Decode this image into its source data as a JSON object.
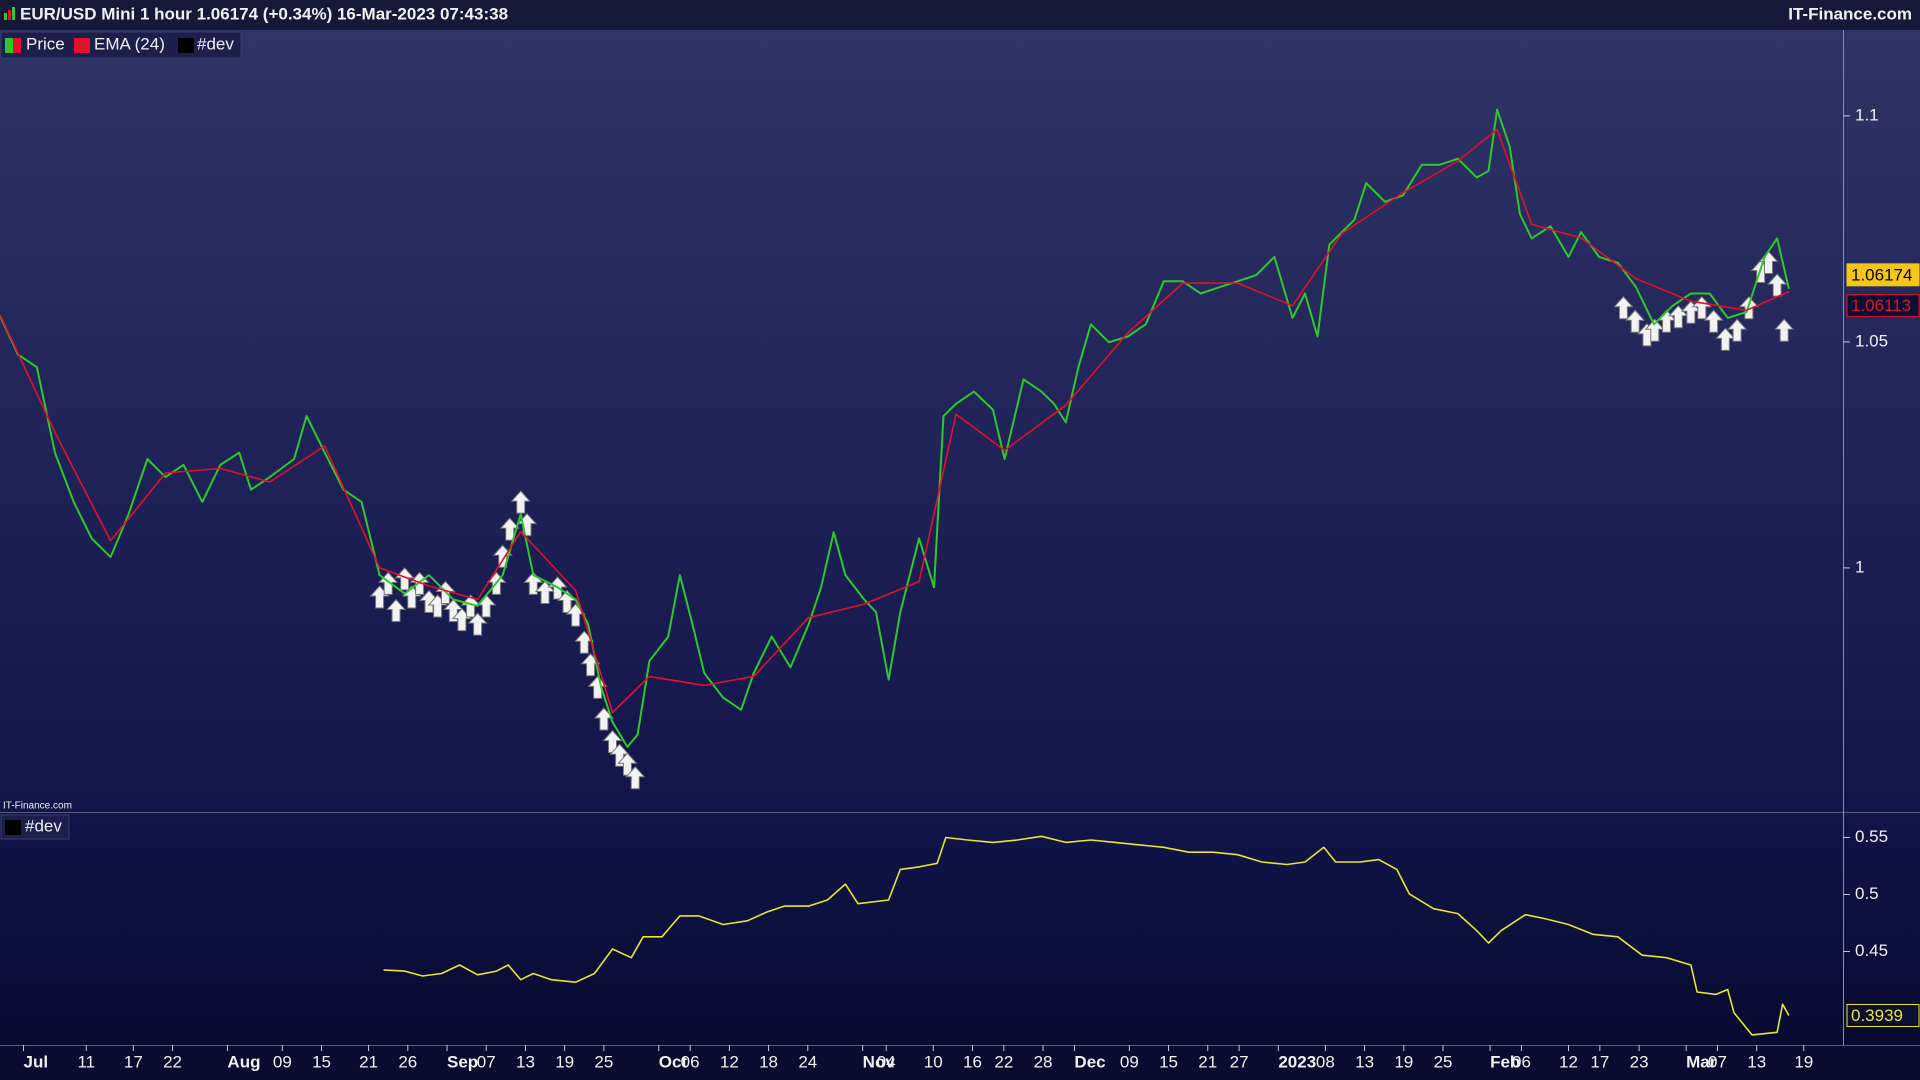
{
  "title": "EUR/USD Mini 1 hour 1.06174 (+0.34%) 16-Mar-2023 07:43:38",
  "brand": "IT-Finance.com",
  "chart_data": [
    {
      "type": "line",
      "xlim": [
        0,
        235
      ],
      "ylim": [
        0.946,
        1.119
      ],
      "yticks": [
        1,
        1.05,
        1.1
      ],
      "x": [
        0,
        2.3,
        4.7,
        7,
        9.4,
        11.7,
        14.1,
        16.4,
        18.8,
        21.1,
        23.4,
        25.8,
        28.1,
        30.5,
        32,
        34.4,
        37.5,
        39.1,
        41.4,
        43.8,
        46.1,
        48.4,
        51.6,
        54.7,
        57.8,
        60.9,
        64.1,
        66.4,
        68,
        71.1,
        73.4,
        75,
        76.6,
        78.1,
        80,
        81.3,
        82.8,
        85.2,
        86.7,
        88.3,
        89.8,
        92.2,
        94.5,
        96.1,
        98.4,
        100.8,
        103.1,
        104.7,
        106.3,
        107.8,
        110.2,
        111.7,
        113.3,
        114.8,
        117.2,
        119.1,
        120.3,
        121.9,
        124.2,
        126.6,
        128.1,
        130.5,
        132.8,
        134.4,
        135.9,
        137.5,
        139.1,
        141.4,
        143.8,
        146.1,
        148.4,
        150.8,
        153.1,
        155.5,
        157.8,
        160.2,
        162.5,
        164.8,
        166.4,
        168,
        169.5,
        171.1,
        172.7,
        174.2,
        176.6,
        178.9,
        181.3,
        183.6,
        185.9,
        188.3,
        189.8,
        190.9,
        192.5,
        193.8,
        195.3,
        197.7,
        200,
        201.6,
        203.9,
        206.3,
        208.6,
        210.9,
        213.3,
        215.6,
        218,
        220.3,
        222.7,
        225,
        226.6,
        228.1
      ],
      "series": [
        {
          "name": "Price",
          "color": "#2ec82e",
          "color2": "#e3102c",
          "values": [
            1.0558,
            1.0472,
            1.0444,
            1.0255,
            1.0146,
            1.0065,
            1.0024,
            1.0119,
            1.0241,
            1.0201,
            1.0228,
            1.0146,
            1.0228,
            1.0255,
            1.0173,
            1.0201,
            1.0241,
            1.0336,
            1.0255,
            1.0173,
            1.0146,
            0.9984,
            0.9943,
            0.9984,
            0.993,
            0.9916,
            0.9984,
            1.0119,
            0.9984,
            0.9957,
            0.993,
            0.9875,
            0.974,
            0.9659,
            0.9604,
            0.9631,
            0.9794,
            0.9848,
            0.9984,
            0.9875,
            0.9767,
            0.9713,
            0.9686,
            0.9767,
            0.9848,
            0.978,
            0.9875,
            0.9957,
            1.0079,
            0.9984,
            0.993,
            0.9902,
            0.9753,
            0.9902,
            1.0065,
            0.9957,
            1.0336,
            1.0363,
            1.039,
            1.035,
            1.0241,
            1.0417,
            1.039,
            1.0363,
            1.0322,
            1.0444,
            1.0539,
            1.0499,
            1.0512,
            1.0539,
            1.0634,
            1.0634,
            1.0607,
            1.0621,
            1.0634,
            1.0648,
            1.0688,
            1.0553,
            1.0607,
            1.0512,
            1.0715,
            1.0743,
            1.077,
            1.0851,
            1.081,
            1.0824,
            1.0892,
            1.0892,
            1.0905,
            1.0864,
            1.0878,
            1.1014,
            1.0932,
            1.0783,
            1.0729,
            1.0756,
            1.0688,
            1.0743,
            1.0688,
            1.0675,
            1.0621,
            1.0539,
            1.058,
            1.0607,
            1.0607,
            1.0553,
            1.0566,
            1.0688,
            1.0729,
            1.06174
          ]
        },
        {
          "name": "EMA (24)",
          "color": "#e3102c",
          "x": [
            0,
            7,
            14.1,
            21.1,
            28.1,
            34.4,
            41.4,
            48.4,
            54.7,
            60.9,
            66.4,
            73.4,
            78.1,
            82.8,
            89.8,
            96.1,
            103.1,
            110.2,
            117.2,
            121.9,
            128.1,
            135.9,
            143.8,
            150.8,
            157.8,
            164.8,
            171.1,
            178.9,
            185.9,
            190.9,
            195.3,
            201.6,
            208.6,
            215.6,
            222.7,
            228.1
          ],
          "values": [
            1.056,
            1.03,
            1.006,
            1.021,
            1.022,
            1.019,
            1.027,
            1.0,
            0.996,
            0.993,
            1.008,
            0.995,
            0.968,
            0.976,
            0.974,
            0.976,
            0.989,
            0.992,
            0.997,
            1.034,
            1.026,
            1.036,
            1.052,
            1.063,
            1.063,
            1.058,
            1.074,
            1.083,
            1.09,
            1.097,
            1.076,
            1.073,
            1.064,
            1.059,
            1.057,
            1.06113
          ]
        }
      ],
      "signals": {
        "color": "#f2f2f2",
        "x": [
          48.4,
          49.5,
          50.5,
          51.6,
          52.5,
          53.5,
          54.7,
          55.8,
          56.8,
          57.8,
          58.9,
          60,
          60.9,
          62,
          63.3,
          64.1,
          65,
          66.4,
          67.2,
          68,
          69.5,
          71.1,
          72.3,
          73.4,
          74.5,
          75.3,
          76.2,
          77,
          78.1,
          79,
          80,
          81,
          207,
          208.5,
          210,
          211,
          212.5,
          214,
          215.6,
          217,
          218.5,
          220,
          221.5,
          223,
          224.5,
          225.5,
          226.6,
          227.5
        ],
        "values": [
          0.996,
          0.999,
          0.993,
          1.0,
          0.996,
          0.999,
          0.995,
          0.994,
          0.997,
          0.993,
          0.991,
          0.994,
          0.99,
          0.994,
          0.999,
          1.005,
          1.011,
          1.017,
          1.012,
          0.999,
          0.997,
          0.998,
          0.995,
          0.992,
          0.986,
          0.981,
          0.976,
          0.969,
          0.964,
          0.961,
          0.959,
          0.956,
          1.06,
          1.057,
          1.054,
          1.055,
          1.057,
          1.058,
          1.059,
          1.06,
          1.057,
          1.053,
          1.055,
          1.06,
          1.068,
          1.07,
          1.065,
          1.055
        ]
      }
    },
    {
      "type": "line",
      "xlim": [
        0,
        235
      ],
      "ylim": [
        0.368,
        0.5715
      ],
      "yticks": [
        0.45,
        0.5,
        0.55
      ],
      "xticks": [
        {
          "value": 3,
          "label": "Jul"
        },
        {
          "value": 11,
          "label": "11"
        },
        {
          "value": 17,
          "label": "17"
        },
        {
          "value": 22,
          "label": "22"
        },
        {
          "value": 29,
          "label": "Aug"
        },
        {
          "value": 36,
          "label": "09"
        },
        {
          "value": 41,
          "label": "15"
        },
        {
          "value": 47,
          "label": "21"
        },
        {
          "value": 52,
          "label": "26"
        },
        {
          "value": 57,
          "label": "Sep"
        },
        {
          "value": 62,
          "label": "07"
        },
        {
          "value": 67,
          "label": "13"
        },
        {
          "value": 72,
          "label": "19"
        },
        {
          "value": 77,
          "label": "25"
        },
        {
          "value": 84,
          "label": "Oct"
        },
        {
          "value": 88,
          "label": "06"
        },
        {
          "value": 93,
          "label": "12"
        },
        {
          "value": 98,
          "label": "18"
        },
        {
          "value": 103,
          "label": "24"
        },
        {
          "value": 110,
          "label": "Nov"
        },
        {
          "value": 113,
          "label": "04"
        },
        {
          "value": 119,
          "label": "10"
        },
        {
          "value": 124,
          "label": "16"
        },
        {
          "value": 128,
          "label": "22"
        },
        {
          "value": 133,
          "label": "28"
        },
        {
          "value": 137,
          "label": "Dec"
        },
        {
          "value": 144,
          "label": "09"
        },
        {
          "value": 149,
          "label": "15"
        },
        {
          "value": 154,
          "label": "21"
        },
        {
          "value": 158,
          "label": "27"
        },
        {
          "value": 163,
          "label": "2023"
        },
        {
          "value": 169,
          "label": "08"
        },
        {
          "value": 174,
          "label": "13"
        },
        {
          "value": 179,
          "label": "19"
        },
        {
          "value": 184,
          "label": "25"
        },
        {
          "value": 190,
          "label": "Feb"
        },
        {
          "value": 194,
          "label": "06"
        },
        {
          "value": 200,
          "label": "12"
        },
        {
          "value": 204,
          "label": "17"
        },
        {
          "value": 209,
          "label": "23"
        },
        {
          "value": 215,
          "label": "Mar"
        },
        {
          "value": 219,
          "label": "07"
        },
        {
          "value": 224,
          "label": "13"
        },
        {
          "value": 230,
          "label": "19"
        }
      ],
      "x": [
        48.9,
        51.6,
        53.9,
        56.3,
        58.6,
        60.9,
        63.3,
        64.8,
        66.4,
        68,
        70.3,
        73.4,
        75.8,
        78.1,
        80.5,
        82,
        84.4,
        86.7,
        89.1,
        92.2,
        95.3,
        97.7,
        100,
        103.1,
        105.5,
        107.8,
        109.4,
        113.3,
        114.8,
        117.2,
        119.5,
        120.6,
        123.4,
        126.6,
        129.7,
        132.8,
        135.9,
        139.1,
        142.2,
        145.3,
        148.4,
        151.6,
        154.7,
        157.8,
        160.9,
        164.1,
        166.4,
        168.8,
        170.3,
        173.4,
        175.8,
        178.1,
        179.7,
        182.8,
        185.9,
        188.3,
        189.8,
        191.4,
        194.5,
        196.9,
        200,
        203.1,
        206.3,
        209.4,
        212.5,
        215.6,
        216.4,
        218.8,
        220.3,
        221.1,
        223.4,
        226.6,
        227.3,
        228.1
      ],
      "series": [
        {
          "name": "#dev",
          "color": "#e6e62c",
          "values": [
            0.4339,
            0.4328,
            0.4285,
            0.4307,
            0.4382,
            0.4296,
            0.4328,
            0.4382,
            0.4253,
            0.4307,
            0.4253,
            0.4231,
            0.4307,
            0.4522,
            0.4446,
            0.4629,
            0.4629,
            0.4812,
            0.4812,
            0.4737,
            0.4769,
            0.4844,
            0.4898,
            0.4898,
            0.4952,
            0.5091,
            0.4919,
            0.4952,
            0.522,
            0.5242,
            0.5274,
            0.55,
            0.5478,
            0.5457,
            0.5478,
            0.5511,
            0.5457,
            0.5478,
            0.5457,
            0.5435,
            0.5414,
            0.5371,
            0.5371,
            0.5349,
            0.5285,
            0.5263,
            0.5285,
            0.5414,
            0.5285,
            0.5285,
            0.5306,
            0.522,
            0.5005,
            0.4876,
            0.4833,
            0.4683,
            0.4575,
            0.4683,
            0.4823,
            0.479,
            0.4737,
            0.4651,
            0.4629,
            0.4468,
            0.4446,
            0.4382,
            0.4145,
            0.4124,
            0.4167,
            0.3963,
            0.3769,
            0.3791,
            0.4038,
            0.3939
          ]
        }
      ]
    }
  ]
}
